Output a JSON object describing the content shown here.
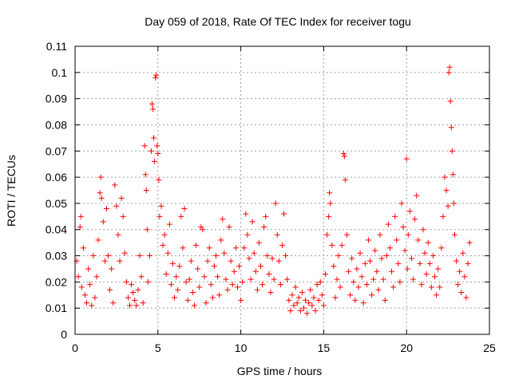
{
  "chart_data": {
    "type": "scatter",
    "title": "Day 059 of 2018, Rate Of TEC Index for receiver togu",
    "xlabel": "GPS time / hours",
    "ylabel": "ROTI / TECUs",
    "xlim": [
      0,
      25
    ],
    "ylim": [
      0,
      0.11
    ],
    "xticks": [
      0,
      5,
      10,
      15,
      20,
      25
    ],
    "xtick_labels": [
      "0",
      "5",
      "10",
      "15",
      "20",
      "25"
    ],
    "yticks": [
      0,
      0.01,
      0.02,
      0.03,
      0.04,
      0.05,
      0.06,
      0.07,
      0.08,
      0.09,
      0.1,
      0.11
    ],
    "ytick_labels": [
      "0",
      "0.01",
      "0.02",
      "0.03",
      "0.04",
      "0.05",
      "0.06",
      "0.07",
      "0.08",
      "0.09",
      "0.1",
      "0.11"
    ],
    "grid": true,
    "marker": "plus",
    "color": "#ff0000",
    "series": [
      {
        "name": "ROTI",
        "points": [
          [
            0.1,
            0.028
          ],
          [
            0.2,
            0.022
          ],
          [
            0.3,
            0.041
          ],
          [
            0.35,
            0.045
          ],
          [
            0.4,
            0.018
          ],
          [
            0.5,
            0.033
          ],
          [
            0.6,
            0.015
          ],
          [
            0.7,
            0.012
          ],
          [
            0.8,
            0.025
          ],
          [
            0.9,
            0.019
          ],
          [
            1.0,
            0.011
          ],
          [
            1.1,
            0.03
          ],
          [
            1.2,
            0.014
          ],
          [
            1.3,
            0.022
          ],
          [
            1.4,
            0.036
          ],
          [
            1.5,
            0.054
          ],
          [
            1.55,
            0.06
          ],
          [
            1.6,
            0.052
          ],
          [
            1.7,
            0.043
          ],
          [
            1.8,
            0.028
          ],
          [
            1.9,
            0.048
          ],
          [
            2.0,
            0.03
          ],
          [
            2.1,
            0.017
          ],
          [
            2.2,
            0.025
          ],
          [
            2.3,
            0.012
          ],
          [
            2.4,
            0.057
          ],
          [
            2.5,
            0.049
          ],
          [
            2.6,
            0.038
          ],
          [
            2.7,
            0.028
          ],
          [
            2.8,
            0.052
          ],
          [
            2.9,
            0.045
          ],
          [
            3.0,
            0.031
          ],
          [
            3.1,
            0.02
          ],
          [
            3.2,
            0.014
          ],
          [
            3.3,
            0.011
          ],
          [
            3.4,
            0.019
          ],
          [
            3.5,
            0.016
          ],
          [
            3.6,
            0.013
          ],
          [
            3.7,
            0.011
          ],
          [
            3.8,
            0.017
          ],
          [
            3.9,
            0.03
          ],
          [
            4.0,
            0.022
          ],
          [
            4.1,
            0.012
          ],
          [
            4.2,
            0.072
          ],
          [
            4.25,
            0.061
          ],
          [
            4.3,
            0.055
          ],
          [
            4.35,
            0.04
          ],
          [
            4.4,
            0.02
          ],
          [
            4.5,
            0.03
          ],
          [
            4.6,
            0.07
          ],
          [
            4.65,
            0.088
          ],
          [
            4.7,
            0.086
          ],
          [
            4.75,
            0.075
          ],
          [
            4.8,
            0.066
          ],
          [
            4.85,
            0.098
          ],
          [
            4.9,
            0.099
          ],
          [
            4.95,
            0.072
          ],
          [
            5.0,
            0.069
          ],
          [
            5.05,
            0.059
          ],
          [
            5.1,
            0.045
          ],
          [
            5.2,
            0.049
          ],
          [
            5.3,
            0.034
          ],
          [
            5.4,
            0.038
          ],
          [
            5.5,
            0.023
          ],
          [
            5.6,
            0.031
          ],
          [
            5.7,
            0.042
          ],
          [
            5.8,
            0.019
          ],
          [
            5.9,
            0.027
          ],
          [
            6.0,
            0.014
          ],
          [
            6.1,
            0.022
          ],
          [
            6.2,
            0.017
          ],
          [
            6.3,
            0.026
          ],
          [
            6.4,
            0.045
          ],
          [
            6.5,
            0.033
          ],
          [
            6.6,
            0.048
          ],
          [
            6.7,
            0.02
          ],
          [
            6.8,
            0.013
          ],
          [
            6.9,
            0.021
          ],
          [
            7.0,
            0.028
          ],
          [
            7.1,
            0.016
          ],
          [
            7.2,
            0.011
          ],
          [
            7.3,
            0.034
          ],
          [
            7.4,
            0.025
          ],
          [
            7.5,
            0.018
          ],
          [
            7.6,
            0.041
          ],
          [
            7.7,
            0.04
          ],
          [
            7.8,
            0.022
          ],
          [
            7.9,
            0.012
          ],
          [
            8.0,
            0.028
          ],
          [
            8.1,
            0.033
          ],
          [
            8.2,
            0.019
          ],
          [
            8.3,
            0.014
          ],
          [
            8.4,
            0.026
          ],
          [
            8.5,
            0.03
          ],
          [
            8.6,
            0.022
          ],
          [
            8.7,
            0.015
          ],
          [
            8.8,
            0.036
          ],
          [
            8.9,
            0.044
          ],
          [
            9.0,
            0.031
          ],
          [
            9.1,
            0.021
          ],
          [
            9.2,
            0.017
          ],
          [
            9.3,
            0.041
          ],
          [
            9.4,
            0.028
          ],
          [
            9.5,
            0.019
          ],
          [
            9.6,
            0.024
          ],
          [
            9.7,
            0.033
          ],
          [
            9.8,
            0.018
          ],
          [
            9.9,
            0.026
          ],
          [
            10.0,
            0.013
          ],
          [
            10.1,
            0.02
          ],
          [
            10.2,
            0.033
          ],
          [
            10.3,
            0.046
          ],
          [
            10.4,
            0.038
          ],
          [
            10.5,
            0.029
          ],
          [
            10.6,
            0.021
          ],
          [
            10.7,
            0.043
          ],
          [
            10.8,
            0.031
          ],
          [
            10.9,
            0.024
          ],
          [
            11.0,
            0.017
          ],
          [
            11.1,
            0.035
          ],
          [
            11.2,
            0.026
          ],
          [
            11.3,
            0.019
          ],
          [
            11.4,
            0.041
          ],
          [
            11.5,
            0.045
          ],
          [
            11.6,
            0.03
          ],
          [
            11.7,
            0.023
          ],
          [
            11.8,
            0.016
          ],
          [
            11.9,
            0.029
          ],
          [
            12.0,
            0.021
          ],
          [
            12.1,
            0.05
          ],
          [
            12.2,
            0.038
          ],
          [
            12.3,
            0.028
          ],
          [
            12.4,
            0.019
          ],
          [
            12.5,
            0.034
          ],
          [
            12.6,
            0.046
          ],
          [
            12.7,
            0.03
          ],
          [
            12.8,
            0.021
          ],
          [
            12.9,
            0.013
          ],
          [
            13.0,
            0.009
          ],
          [
            13.1,
            0.015
          ],
          [
            13.2,
            0.011
          ],
          [
            13.3,
            0.018
          ],
          [
            13.4,
            0.012
          ],
          [
            13.5,
            0.014
          ],
          [
            13.6,
            0.009
          ],
          [
            13.7,
            0.016
          ],
          [
            13.8,
            0.01
          ],
          [
            13.9,
            0.013
          ],
          [
            14.0,
            0.008
          ],
          [
            14.1,
            0.012
          ],
          [
            14.2,
            0.017
          ],
          [
            14.3,
            0.011
          ],
          [
            14.4,
            0.014
          ],
          [
            14.5,
            0.009
          ],
          [
            14.6,
            0.019
          ],
          [
            14.7,
            0.013
          ],
          [
            14.8,
            0.02
          ],
          [
            14.9,
            0.015
          ],
          [
            15.0,
            0.011
          ],
          [
            15.1,
            0.023
          ],
          [
            15.2,
            0.038
          ],
          [
            15.3,
            0.045
          ],
          [
            15.35,
            0.054
          ],
          [
            15.4,
            0.05
          ],
          [
            15.5,
            0.034
          ],
          [
            15.6,
            0.026
          ],
          [
            15.7,
            0.014
          ],
          [
            15.8,
            0.021
          ],
          [
            15.9,
            0.03
          ],
          [
            16.0,
            0.018
          ],
          [
            16.1,
            0.034
          ],
          [
            16.2,
            0.069
          ],
          [
            16.25,
            0.068
          ],
          [
            16.3,
            0.059
          ],
          [
            16.4,
            0.038
          ],
          [
            16.5,
            0.024
          ],
          [
            16.6,
            0.015
          ],
          [
            16.7,
            0.029
          ],
          [
            16.8,
            0.02
          ],
          [
            16.9,
            0.013
          ],
          [
            17.0,
            0.025
          ],
          [
            17.1,
            0.018
          ],
          [
            17.2,
            0.031
          ],
          [
            17.3,
            0.022
          ],
          [
            17.4,
            0.012
          ],
          [
            17.5,
            0.027
          ],
          [
            17.6,
            0.019
          ],
          [
            17.7,
            0.036
          ],
          [
            17.8,
            0.028
          ],
          [
            17.9,
            0.015
          ],
          [
            18.0,
            0.021
          ],
          [
            18.1,
            0.032
          ],
          [
            18.2,
            0.024
          ],
          [
            18.3,
            0.017
          ],
          [
            18.4,
            0.038
          ],
          [
            18.5,
            0.029
          ],
          [
            18.6,
            0.021
          ],
          [
            18.7,
            0.013
          ],
          [
            18.8,
            0.03
          ],
          [
            18.9,
            0.042
          ],
          [
            19.0,
            0.033
          ],
          [
            19.1,
            0.024
          ],
          [
            19.2,
            0.018
          ],
          [
            19.3,
            0.045
          ],
          [
            19.4,
            0.036
          ],
          [
            19.5,
            0.027
          ],
          [
            19.6,
            0.02
          ],
          [
            19.7,
            0.05
          ],
          [
            19.8,
            0.041
          ],
          [
            19.9,
            0.032
          ],
          [
            20.0,
            0.067
          ],
          [
            20.05,
            0.025
          ],
          [
            20.1,
            0.038
          ],
          [
            20.2,
            0.047
          ],
          [
            20.3,
            0.029
          ],
          [
            20.4,
            0.021
          ],
          [
            20.5,
            0.044
          ],
          [
            20.6,
            0.053
          ],
          [
            20.7,
            0.036
          ],
          [
            20.8,
            0.027
          ],
          [
            20.9,
            0.019
          ],
          [
            21.0,
            0.04
          ],
          [
            21.1,
            0.031
          ],
          [
            21.2,
            0.023
          ],
          [
            21.3,
            0.035
          ],
          [
            21.4,
            0.027
          ],
          [
            21.5,
            0.018
          ],
          [
            21.6,
            0.03
          ],
          [
            21.7,
            0.022
          ],
          [
            21.8,
            0.015
          ],
          [
            21.9,
            0.025
          ],
          [
            22.0,
            0.018
          ],
          [
            22.1,
            0.033
          ],
          [
            22.2,
            0.045
          ],
          [
            22.3,
            0.06
          ],
          [
            22.4,
            0.055
          ],
          [
            22.5,
            0.049
          ],
          [
            22.55,
            0.1
          ],
          [
            22.6,
            0.102
          ],
          [
            22.65,
            0.089
          ],
          [
            22.7,
            0.079
          ],
          [
            22.75,
            0.07
          ],
          [
            22.8,
            0.061
          ],
          [
            22.85,
            0.05
          ],
          [
            22.9,
            0.038
          ],
          [
            23.0,
            0.028
          ],
          [
            23.1,
            0.019
          ],
          [
            23.2,
            0.024
          ],
          [
            23.3,
            0.016
          ],
          [
            23.4,
            0.031
          ],
          [
            23.5,
            0.022
          ],
          [
            23.6,
            0.014
          ],
          [
            23.7,
            0.027
          ],
          [
            23.8,
            0.035
          ]
        ]
      }
    ]
  }
}
